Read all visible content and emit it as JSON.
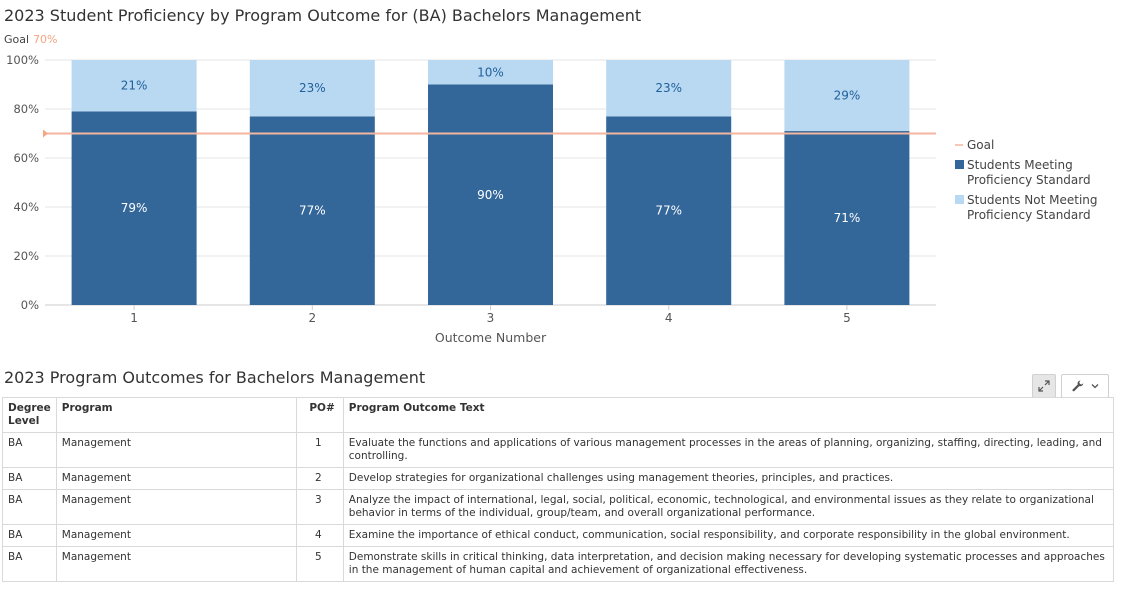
{
  "chart_title": "2023 Student Proficiency by Program Outcome for (BA) Bachelors Management",
  "goal_label": "Goal",
  "goal_value_label": "70%",
  "chart_data": {
    "type": "bar",
    "stacked": true,
    "title": "2023 Student Proficiency by Program Outcome for (BA) Bachelors Management",
    "xlabel": "Outcome Number",
    "ylabel": "",
    "categories": [
      "1",
      "2",
      "3",
      "4",
      "5"
    ],
    "ylim": [
      0,
      100
    ],
    "yticks": [
      "0%",
      "20%",
      "40%",
      "60%",
      "80%",
      "100%"
    ],
    "goal": 70,
    "grid": true,
    "legend_position": "right",
    "series": [
      {
        "name": "Students Meeting Proficiency Standard",
        "values": [
          79,
          77,
          90,
          77,
          71
        ],
        "labels": [
          "79%",
          "77%",
          "90%",
          "77%",
          "71%"
        ],
        "color": "#336699"
      },
      {
        "name": "Students Not Meeting Proficiency Standard",
        "values": [
          21,
          23,
          10,
          23,
          29
        ],
        "labels": [
          "21%",
          "23%",
          "10%",
          "23%",
          "29%"
        ],
        "color": "#b9d9f2"
      }
    ],
    "legend": [
      {
        "label": "Goal",
        "color": "#f4b6a0",
        "kind": "line"
      },
      {
        "label": "Students Meeting Proficiency Standard",
        "lines": [
          "Students Meeting",
          "Proficiency Standard"
        ],
        "color": "#336699",
        "kind": "box"
      },
      {
        "label": "Students Not Meeting Proficiency Standard",
        "lines": [
          "Students Not Meeting",
          "Proficiency Standard"
        ],
        "color": "#b9d9f2",
        "kind": "box"
      }
    ]
  },
  "table": {
    "title": "2023 Program Outcomes for Bachelors Management",
    "headers": {
      "degree": "Degree Level",
      "program": "Program",
      "po": "PO#",
      "text": "Program Outcome Text"
    },
    "rows": [
      {
        "degree": "BA",
        "program": "Management",
        "po": "1",
        "text": "Evaluate the functions and applications of various management processes in the areas of planning, organizing, staffing, directing, leading, and controlling."
      },
      {
        "degree": "BA",
        "program": "Management",
        "po": "2",
        "text": "Develop strategies for organizational challenges using management theories, principles, and practices."
      },
      {
        "degree": "BA",
        "program": "Management",
        "po": "3",
        "text": "Analyze the impact of international, legal, social, political, economic, technological, and environmental issues as they relate to organizational behavior in terms of the individual, group/team, and overall organizational performance."
      },
      {
        "degree": "BA",
        "program": "Management",
        "po": "4",
        "text": "Examine the importance of ethical conduct, communication, social responsibility, and corporate responsibility in the global environment."
      },
      {
        "degree": "BA",
        "program": "Management",
        "po": "5",
        "text": "Demonstrate skills in critical thinking, data interpretation, and decision making necessary for developing systematic processes and approaches in the management of human capital and achievement of organizational effectiveness."
      }
    ]
  },
  "toolbar": {
    "expand_icon": "expand-icon",
    "wrench_icon": "wrench-icon",
    "chevron_icon": "chevron-down-icon"
  }
}
